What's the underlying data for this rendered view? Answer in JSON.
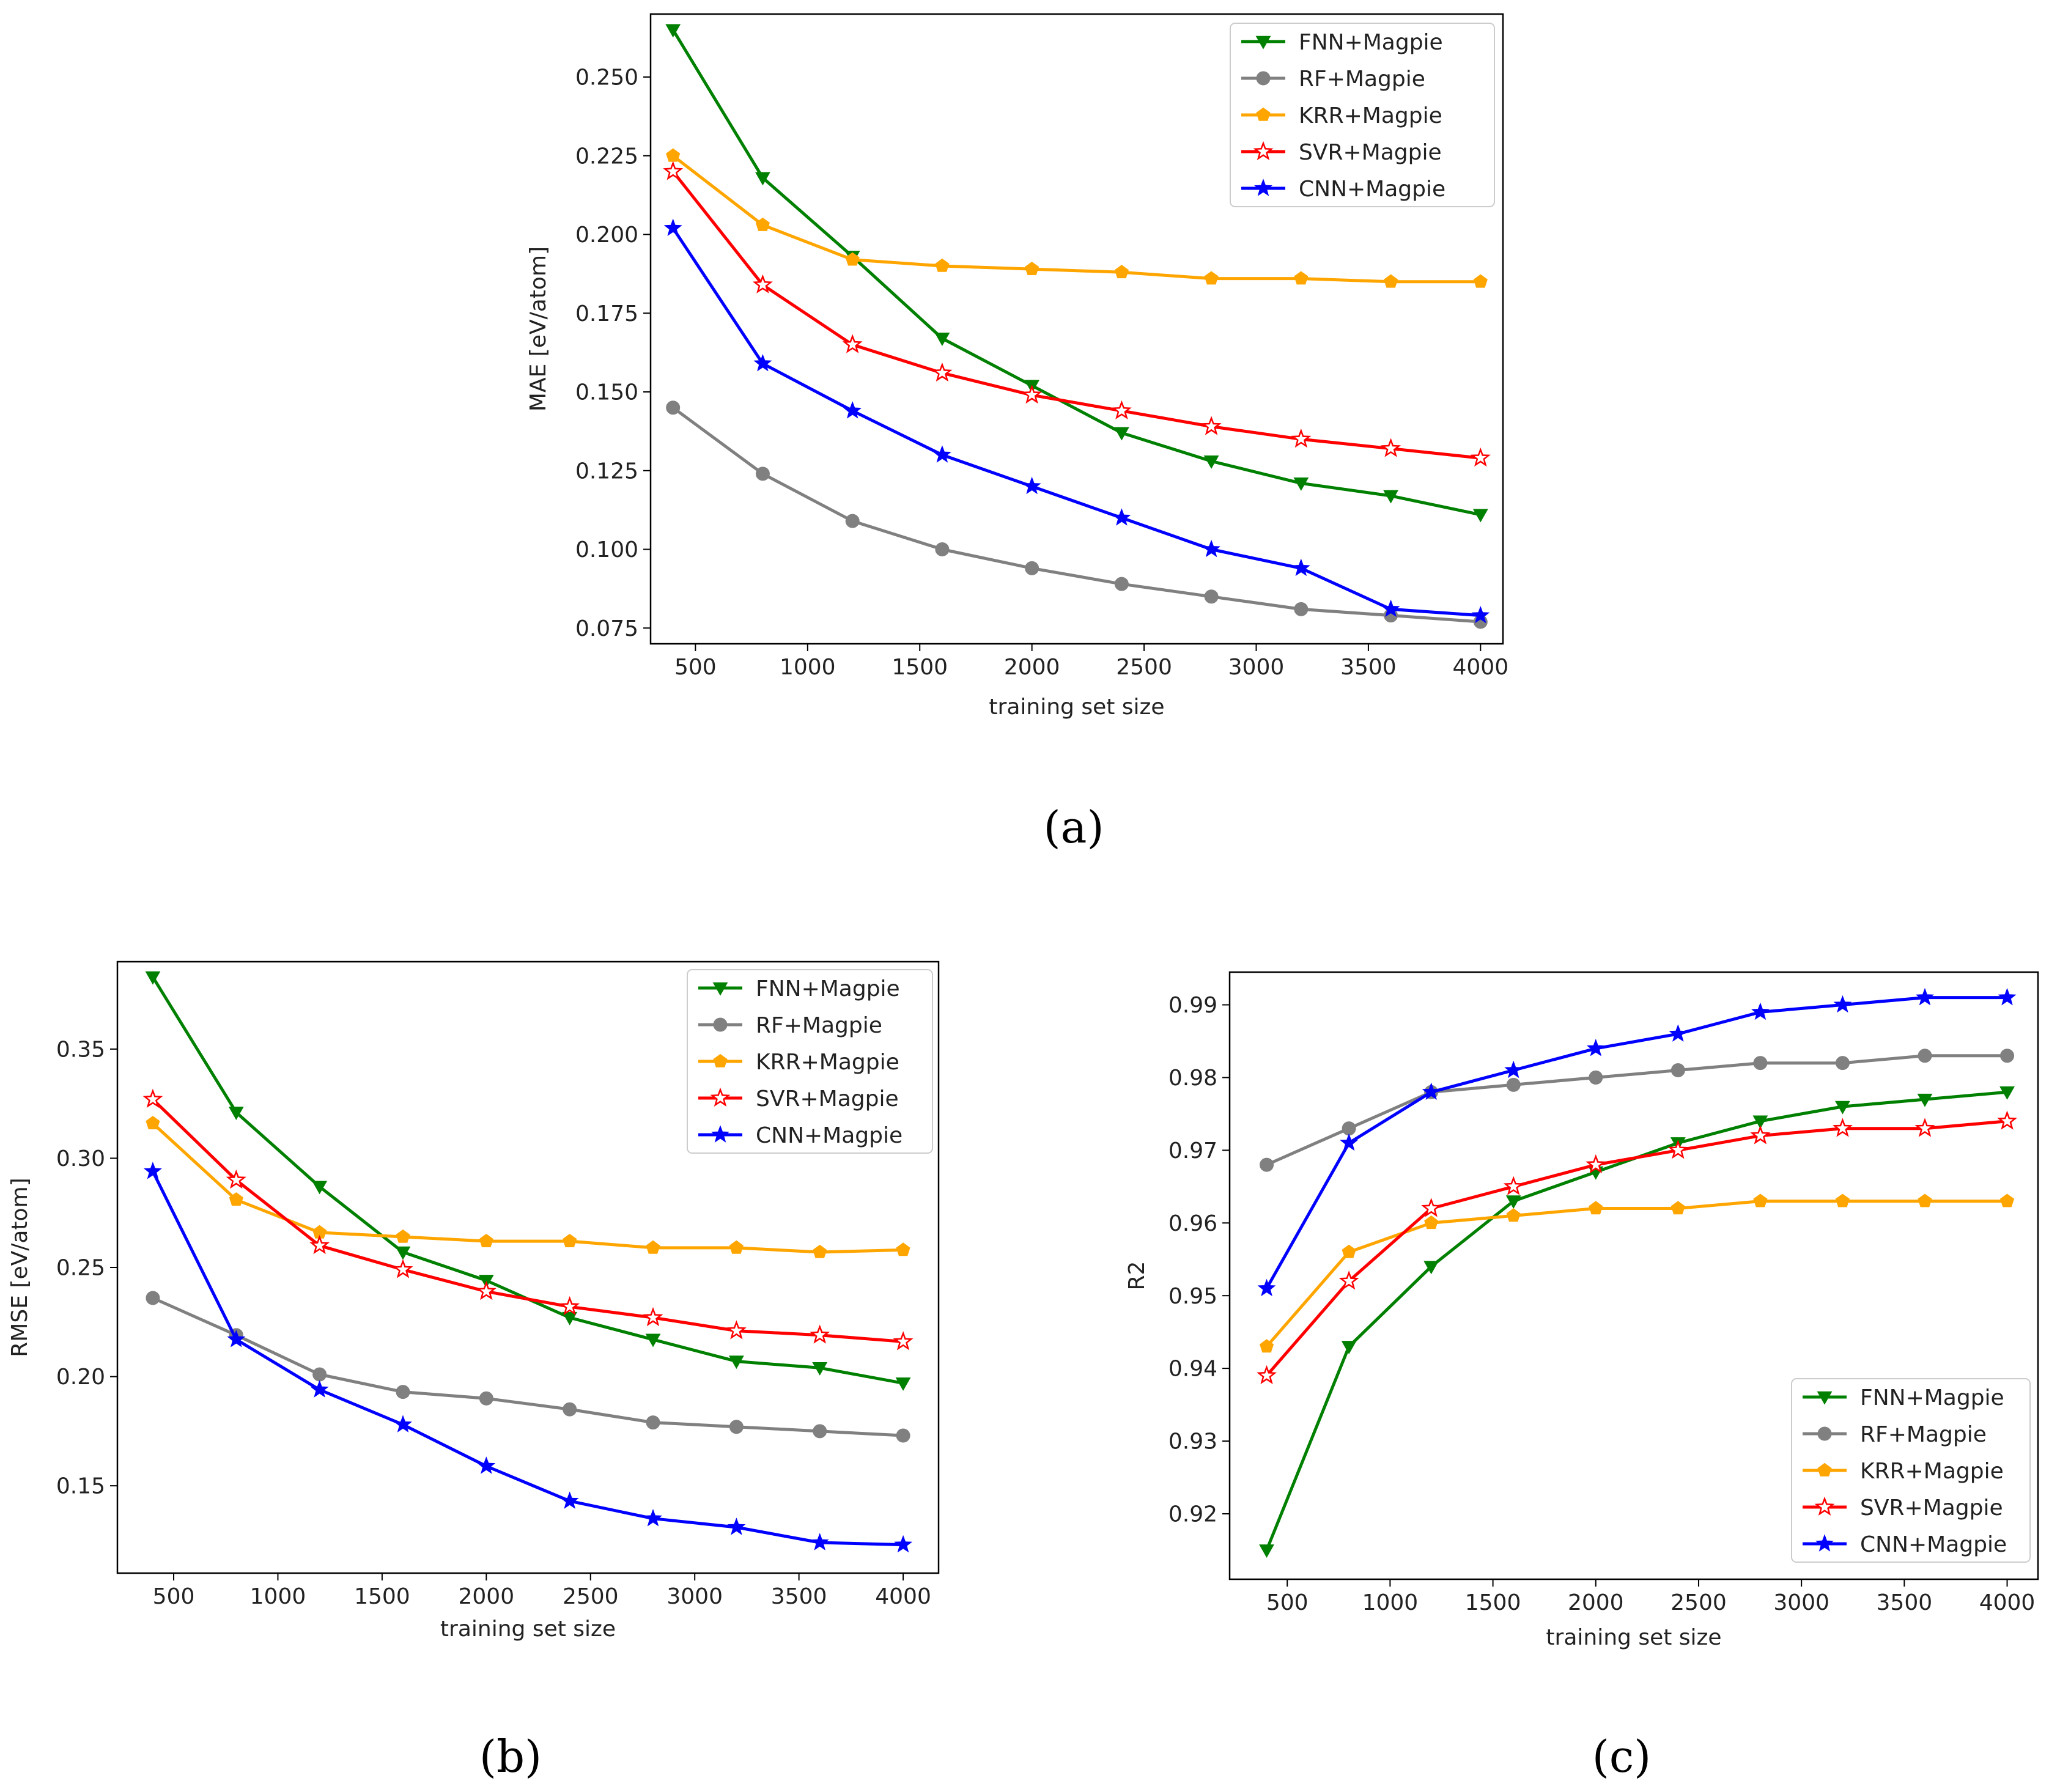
{
  "chart_data": [
    {
      "id": "a",
      "panel_label": "(a)",
      "type": "line",
      "xlabel": "training set size",
      "ylabel": "MAE [eV/atom]",
      "xlim": [
        300,
        4100
      ],
      "ylim": [
        0.07,
        0.27
      ],
      "x_ticks": [
        500,
        1000,
        1500,
        2000,
        2500,
        3000,
        3500,
        4000
      ],
      "y_ticks": [
        0.075,
        0.1,
        0.125,
        0.15,
        0.175,
        0.2,
        0.225,
        0.25
      ],
      "y_tick_labels": [
        "0.075",
        "0.100",
        "0.125",
        "0.150",
        "0.175",
        "0.200",
        "0.225",
        "0.250"
      ],
      "legend_position": "top-right",
      "x": [
        400,
        800,
        1200,
        1600,
        2000,
        2400,
        2800,
        3200,
        3600,
        4000
      ],
      "series": [
        {
          "name": "FNN+Magpie",
          "color": "#008000",
          "marker": "triangle-down",
          "values": [
            0.265,
            0.218,
            0.193,
            0.167,
            0.152,
            0.137,
            0.128,
            0.121,
            0.117,
            0.111
          ]
        },
        {
          "name": "RF+Magpie",
          "color": "#808080",
          "marker": "circle",
          "values": [
            0.145,
            0.124,
            0.109,
            0.1,
            0.094,
            0.089,
            0.085,
            0.081,
            0.079,
            0.077
          ]
        },
        {
          "name": "KRR+Magpie",
          "color": "#ffa500",
          "marker": "pentagon",
          "values": [
            0.225,
            0.203,
            0.192,
            0.19,
            0.189,
            0.188,
            0.186,
            0.186,
            0.185,
            0.185
          ]
        },
        {
          "name": "SVR+Magpie",
          "color": "#ff0000",
          "marker": "star-open",
          "values": [
            0.22,
            0.184,
            0.165,
            0.156,
            0.149,
            0.144,
            0.139,
            0.135,
            0.132,
            0.129
          ]
        },
        {
          "name": "CNN+Magpie",
          "color": "#0000ff",
          "marker": "star",
          "values": [
            0.202,
            0.159,
            0.144,
            0.13,
            0.12,
            0.11,
            0.1,
            0.094,
            0.081,
            0.079
          ]
        }
      ]
    },
    {
      "id": "b",
      "panel_label": "(b)",
      "type": "line",
      "xlabel": "training set size",
      "ylabel": "RMSE [eV/atom]",
      "xlim": [
        230,
        4170
      ],
      "ylim": [
        0.11,
        0.39
      ],
      "x_ticks": [
        500,
        1000,
        1500,
        2000,
        2500,
        3000,
        3500,
        4000
      ],
      "y_ticks": [
        0.15,
        0.2,
        0.25,
        0.3,
        0.35
      ],
      "y_tick_labels": [
        "0.15",
        "0.20",
        "0.25",
        "0.30",
        "0.35"
      ],
      "legend_position": "top-right",
      "x": [
        400,
        800,
        1200,
        1600,
        2000,
        2400,
        2800,
        3200,
        3600,
        4000
      ],
      "series": [
        {
          "name": "FNN+Magpie",
          "color": "#008000",
          "marker": "triangle-down",
          "values": [
            0.383,
            0.321,
            0.287,
            0.257,
            0.244,
            0.227,
            0.217,
            0.207,
            0.204,
            0.197
          ]
        },
        {
          "name": "RF+Magpie",
          "color": "#808080",
          "marker": "circle",
          "values": [
            0.236,
            0.219,
            0.201,
            0.193,
            0.19,
            0.185,
            0.179,
            0.177,
            0.175,
            0.173
          ]
        },
        {
          "name": "KRR+Magpie",
          "color": "#ffa500",
          "marker": "pentagon",
          "values": [
            0.316,
            0.281,
            0.266,
            0.264,
            0.262,
            0.262,
            0.259,
            0.259,
            0.257,
            0.258
          ]
        },
        {
          "name": "SVR+Magpie",
          "color": "#ff0000",
          "marker": "star-open",
          "values": [
            0.327,
            0.29,
            0.26,
            0.249,
            0.239,
            0.232,
            0.227,
            0.221,
            0.219,
            0.216
          ]
        },
        {
          "name": "CNN+Magpie",
          "color": "#0000ff",
          "marker": "star",
          "values": [
            0.294,
            0.217,
            0.194,
            0.178,
            0.159,
            0.143,
            0.135,
            0.131,
            0.124,
            0.123
          ]
        }
      ]
    },
    {
      "id": "c",
      "panel_label": "(c)",
      "type": "line",
      "xlabel": "training set size",
      "ylabel": "R2",
      "xlim": [
        220,
        4150
      ],
      "ylim": [
        0.911,
        0.9945
      ],
      "x_ticks": [
        500,
        1000,
        1500,
        2000,
        2500,
        3000,
        3500,
        4000
      ],
      "y_ticks": [
        0.92,
        0.93,
        0.94,
        0.95,
        0.96,
        0.97,
        0.98,
        0.99
      ],
      "y_tick_labels": [
        "0.92",
        "0.93",
        "0.94",
        "0.95",
        "0.96",
        "0.97",
        "0.98",
        "0.99"
      ],
      "legend_position": "bottom-right",
      "x": [
        400,
        800,
        1200,
        1600,
        2000,
        2400,
        2800,
        3200,
        3600,
        4000
      ],
      "series": [
        {
          "name": "FNN+Magpie",
          "color": "#008000",
          "marker": "triangle-down",
          "values": [
            0.915,
            0.943,
            0.954,
            0.963,
            0.967,
            0.971,
            0.974,
            0.976,
            0.977,
            0.978
          ]
        },
        {
          "name": "RF+Magpie",
          "color": "#808080",
          "marker": "circle",
          "values": [
            0.968,
            0.973,
            0.978,
            0.979,
            0.98,
            0.981,
            0.982,
            0.982,
            0.983,
            0.983
          ]
        },
        {
          "name": "KRR+Magpie",
          "color": "#ffa500",
          "marker": "pentagon",
          "values": [
            0.943,
            0.956,
            0.96,
            0.961,
            0.962,
            0.962,
            0.963,
            0.963,
            0.963,
            0.963
          ]
        },
        {
          "name": "SVR+Magpie",
          "color": "#ff0000",
          "marker": "star-open",
          "values": [
            0.939,
            0.952,
            0.962,
            0.965,
            0.968,
            0.97,
            0.972,
            0.973,
            0.973,
            0.974
          ]
        },
        {
          "name": "CNN+Magpie",
          "color": "#0000ff",
          "marker": "star",
          "values": [
            0.951,
            0.971,
            0.978,
            0.981,
            0.984,
            0.986,
            0.989,
            0.99,
            0.991,
            0.991
          ]
        }
      ]
    }
  ]
}
